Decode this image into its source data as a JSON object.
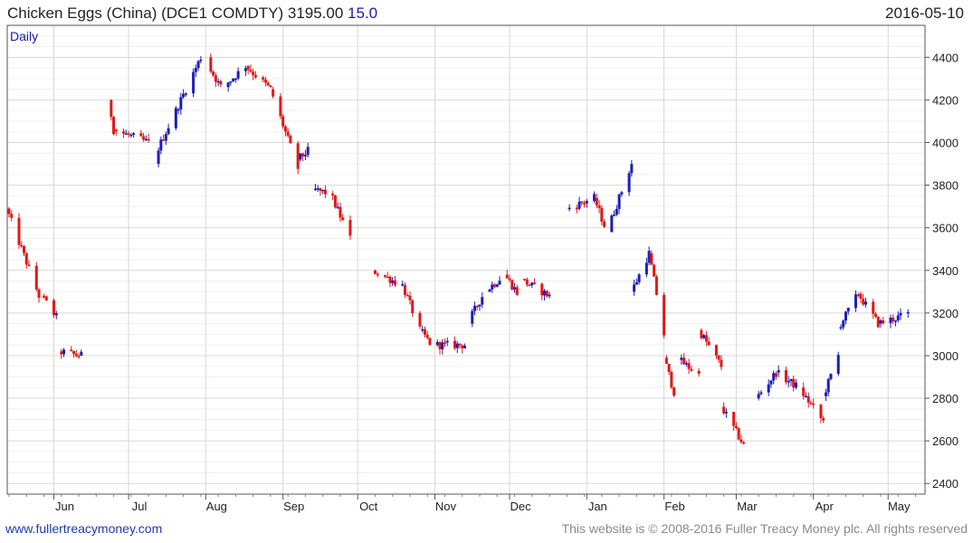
{
  "header": {
    "title": "Chicken Eggs (China) (DCE1 COMDTY) 3195.00",
    "change": "15.0",
    "date": "2016-05-10"
  },
  "footer": {
    "site": "www.fullertreacymoney.com",
    "copyright": "This website is © 2008-2016 Fuller Treacy Money plc. All rights reserved"
  },
  "colors": {
    "up": "#1d1db8",
    "down": "#e01818",
    "grid": "#d8d8d8",
    "frame": "#555555"
  },
  "chart_data": {
    "type": "candlestick",
    "period_label": "Daily",
    "title": "Chicken Eggs (China) (DCE1 COMDTY) 3195.00 15.0",
    "ylim": [
      2350,
      4550
    ],
    "y_axis_side": "right",
    "y_ticks": [
      2400,
      2600,
      2800,
      3000,
      3200,
      3400,
      3600,
      3800,
      4000,
      4200,
      4400
    ],
    "x_tick_labels": [
      "Jun",
      "Jul",
      "Aug",
      "Sep",
      "Oct",
      "Nov",
      "Dec",
      "Jan",
      "Feb",
      "Mar",
      "Apr",
      "May"
    ],
    "x_tick_dates": [
      "2015-06-01",
      "2015-07-01",
      "2015-08-01",
      "2015-09-01",
      "2015-10-01",
      "2015-11-01",
      "2015-12-01",
      "2016-01-01",
      "2016-02-01",
      "2016-03-01",
      "2016-04-01",
      "2016-05-01"
    ],
    "grid": true,
    "segments": [
      {
        "start": "2015-05-14",
        "end": "2015-05-27",
        "open": 3690,
        "close": 3280
      },
      {
        "start": "2015-05-28",
        "end": "2015-06-03",
        "open": 3280,
        "close": 3180
      },
      {
        "start": "2015-06-04",
        "end": "2015-06-12",
        "open": 3020,
        "close": 3000
      },
      {
        "start": "2015-06-12",
        "end": "2015-06-14",
        "open": 3000,
        "close": 3000
      },
      {
        "start": "2015-06-24",
        "end": "2015-06-26",
        "open": 4200,
        "close": 4060
      },
      {
        "start": "2015-06-26",
        "end": "2015-07-10",
        "open": 4060,
        "close": 4000
      },
      {
        "start": "2015-07-11",
        "end": "2015-07-21",
        "open": 3900,
        "close": 4150
      },
      {
        "start": "2015-07-21",
        "end": "2015-07-31",
        "open": 4150,
        "close": 4400
      },
      {
        "start": "2015-08-01",
        "end": "2015-08-08",
        "open": 4400,
        "close": 4260
      },
      {
        "start": "2015-08-09",
        "end": "2015-08-18",
        "open": 4260,
        "close": 4360
      },
      {
        "start": "2015-08-18",
        "end": "2015-08-28",
        "open": 4360,
        "close": 4250
      },
      {
        "start": "2015-08-28",
        "end": "2015-09-08",
        "open": 4250,
        "close": 3880
      },
      {
        "start": "2015-09-08",
        "end": "2015-09-12",
        "open": 3920,
        "close": 3960
      },
      {
        "start": "2015-09-14",
        "end": "2015-09-21",
        "open": 3780,
        "close": 3760
      },
      {
        "start": "2015-09-21",
        "end": "2015-09-29",
        "open": 3760,
        "close": 3550
      },
      {
        "start": "2015-10-08",
        "end": "2015-10-20",
        "open": 3400,
        "close": 3330
      },
      {
        "start": "2015-10-20",
        "end": "2015-10-27",
        "open": 3330,
        "close": 3120
      },
      {
        "start": "2015-10-27",
        "end": "2015-11-02",
        "open": 3120,
        "close": 3030
      },
      {
        "start": "2015-11-02",
        "end": "2015-11-15",
        "open": 3050,
        "close": 3050
      },
      {
        "start": "2015-11-15",
        "end": "2015-11-22",
        "open": 3150,
        "close": 3300
      },
      {
        "start": "2015-11-22",
        "end": "2015-11-30",
        "open": 3300,
        "close": 3380
      },
      {
        "start": "2015-11-30",
        "end": "2015-12-06",
        "open": 3380,
        "close": 3280
      },
      {
        "start": "2015-12-06",
        "end": "2015-12-18",
        "open": 3360,
        "close": 3280
      },
      {
        "start": "2015-12-25",
        "end": "2016-01-05",
        "open": 3690,
        "close": 3740
      },
      {
        "start": "2016-01-05",
        "end": "2016-01-10",
        "open": 3740,
        "close": 3580
      },
      {
        "start": "2016-01-10",
        "end": "2016-01-20",
        "open": 3580,
        "close": 3900
      },
      {
        "start": "2016-01-20",
        "end": "2016-01-27",
        "open": 3300,
        "close": 3480
      },
      {
        "start": "2016-01-27",
        "end": "2016-02-02",
        "open": 3480,
        "close": 3100
      },
      {
        "start": "2016-02-02",
        "end": "2016-02-06",
        "open": 2990,
        "close": 2830
      },
      {
        "start": "2016-02-08",
        "end": "2016-02-16",
        "open": 2980,
        "close": 2910
      },
      {
        "start": "2016-02-16",
        "end": "2016-02-25",
        "open": 3120,
        "close": 2950
      },
      {
        "start": "2016-02-25",
        "end": "2016-03-06",
        "open": 2760,
        "close": 2560
      },
      {
        "start": "2016-03-10",
        "end": "2016-03-18",
        "open": 2800,
        "close": 2920
      },
      {
        "start": "2016-03-18",
        "end": "2016-03-27",
        "open": 2920,
        "close": 2850
      },
      {
        "start": "2016-03-27",
        "end": "2016-04-06",
        "open": 2850,
        "close": 2690
      },
      {
        "start": "2016-04-06",
        "end": "2016-04-12",
        "open": 2810,
        "close": 3000
      },
      {
        "start": "2016-04-12",
        "end": "2016-04-20",
        "open": 3130,
        "close": 3290
      },
      {
        "start": "2016-04-20",
        "end": "2016-04-28",
        "open": 3290,
        "close": 3150
      },
      {
        "start": "2016-04-28",
        "end": "2016-05-10",
        "open": 3150,
        "close": 3195
      }
    ]
  }
}
